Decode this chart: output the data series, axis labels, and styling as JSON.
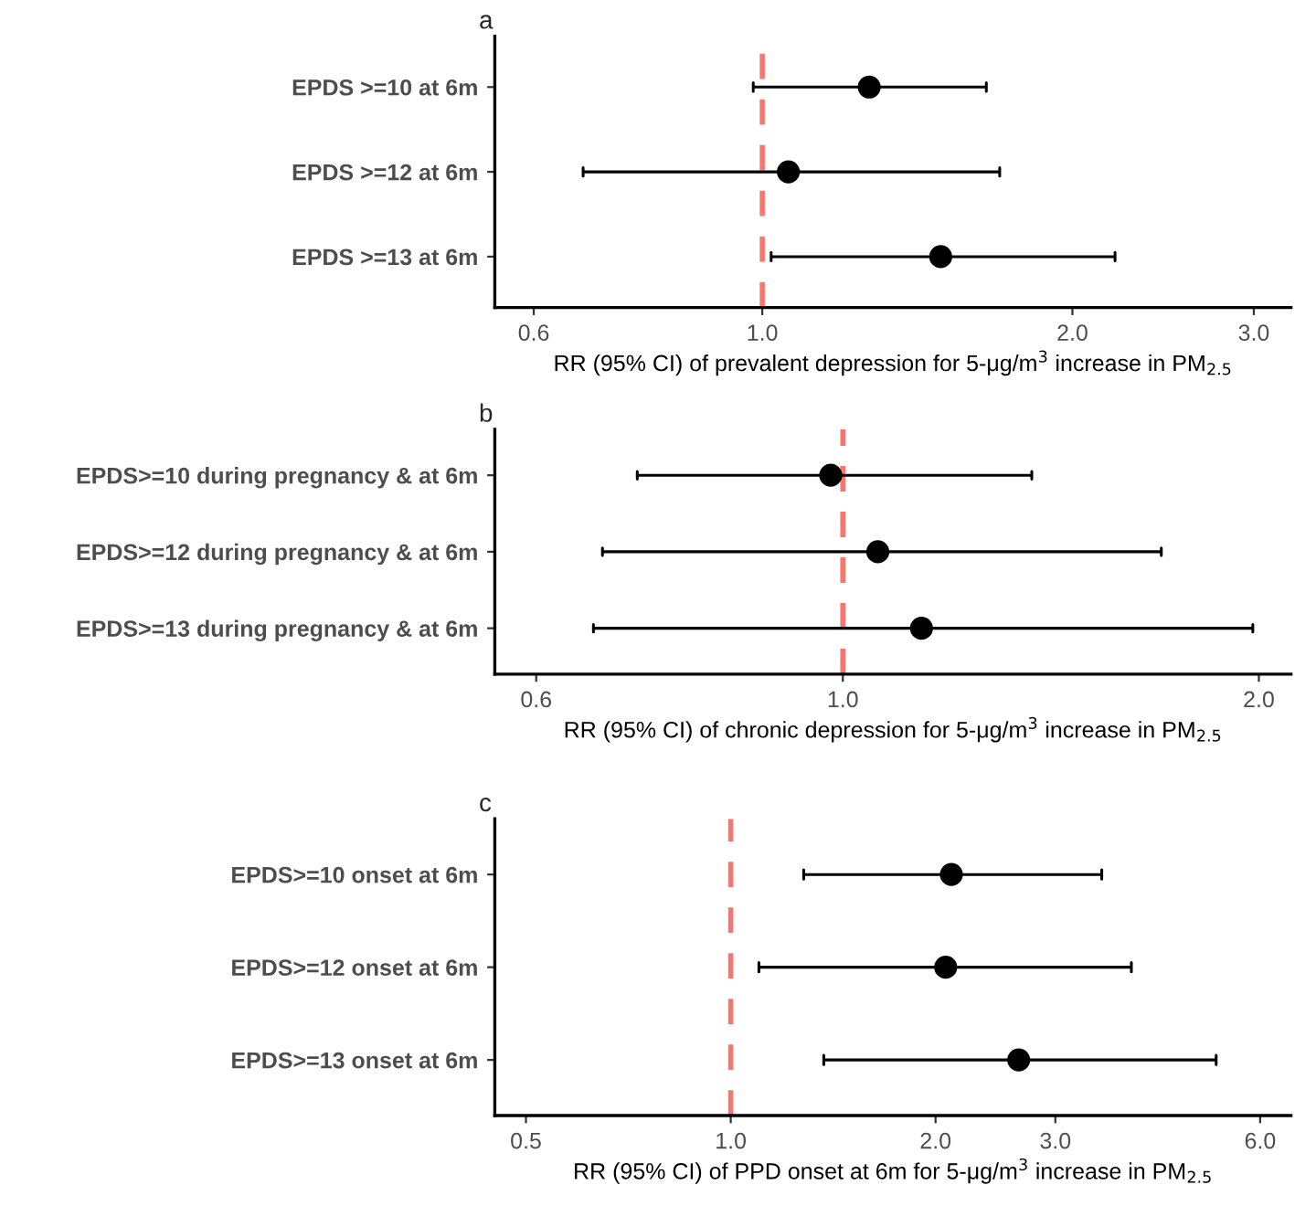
{
  "chart_data": [
    {
      "type": "scatter",
      "title": "a",
      "orientation": "horizontal",
      "log": "x",
      "grid": false,
      "marker": "circle",
      "categories": [
        "EPDS >=10 at 6m",
        "EPDS >=12 at 6m",
        "EPDS >=13 at 6m"
      ],
      "series": [
        {
          "color": "#000000",
          "values": [
            1.27,
            1.06,
            1.49
          ],
          "errors": [
            [
              0.98,
              1.65
            ],
            [
              0.67,
              1.7
            ],
            [
              1.02,
              2.2
            ]
          ]
        }
      ],
      "xlim": [
        0.55,
        3.26
      ],
      "xticks": [
        {
          "value": 0.6,
          "label": "0.6"
        },
        {
          "value": 1,
          "label": "1.0"
        },
        {
          "value": 2,
          "label": "2.0"
        },
        {
          "value": 3,
          "label": "3.0"
        }
      ],
      "xlabel": "RR (95% CI) of prevalent depression for 5-μg/m$^{3}$ increase in PM$_{2.5}$",
      "ref_lines": [
        {
          "axis": "x",
          "value": 1,
          "color": "#f8766d",
          "line_style": "dashed"
        }
      ]
    },
    {
      "type": "scatter",
      "title": "b",
      "orientation": "horizontal",
      "log": "x",
      "grid": false,
      "marker": "circle",
      "categories": [
        "EPDS>=10 during pregnancy & at 6m",
        "EPDS>=12 during pregnancy & at 6m",
        "EPDS>=13 during pregnancy & at 6m"
      ],
      "series": [
        {
          "color": "#000000",
          "values": [
            0.98,
            1.06,
            1.14
          ],
          "errors": [
            [
              0.71,
              1.37
            ],
            [
              0.67,
              1.7
            ],
            [
              0.66,
              1.98
            ]
          ]
        }
      ],
      "xlim": [
        0.56,
        2.11
      ],
      "xticks": [
        {
          "value": 0.6,
          "label": "0.6"
        },
        {
          "value": 1,
          "label": "1.0"
        },
        {
          "value": 2,
          "label": "2.0"
        }
      ],
      "xlabel": "RR (95% CI) of chronic depression for 5-μg/m$^{3}$ increase in PM$_{2.5}$",
      "ref_lines": [
        {
          "axis": "x",
          "value": 1,
          "color": "#f8766d",
          "line_style": "dashed"
        }
      ]
    },
    {
      "type": "scatter",
      "title": "c",
      "orientation": "horizontal",
      "log": "x",
      "grid": false,
      "marker": "circle",
      "categories": [
        "EPDS>=10 onset at 6m",
        "EPDS>=12 onset at 6m",
        "EPDS>=13 onset at 6m"
      ],
      "series": [
        {
          "color": "#000000",
          "values": [
            2.11,
            2.07,
            2.65
          ],
          "errors": [
            [
              1.28,
              3.51
            ],
            [
              1.1,
              3.88
            ],
            [
              1.37,
              5.17
            ]
          ]
        }
      ],
      "xlim": [
        0.45,
        6.66
      ],
      "xticks": [
        {
          "value": 0.5,
          "label": "0.5"
        },
        {
          "value": 1,
          "label": "1.0"
        },
        {
          "value": 2,
          "label": "2.0"
        },
        {
          "value": 3,
          "label": "3.0"
        },
        {
          "value": 6,
          "label": "6.0"
        }
      ],
      "xlabel": "RR (95% CI) of PPD onset at 6m for 5-μg/m$^{3}$ increase in PM$_{2.5}$",
      "ref_lines": [
        {
          "axis": "x",
          "value": 1,
          "color": "#f8766d",
          "line_style": "dashed"
        }
      ]
    }
  ]
}
